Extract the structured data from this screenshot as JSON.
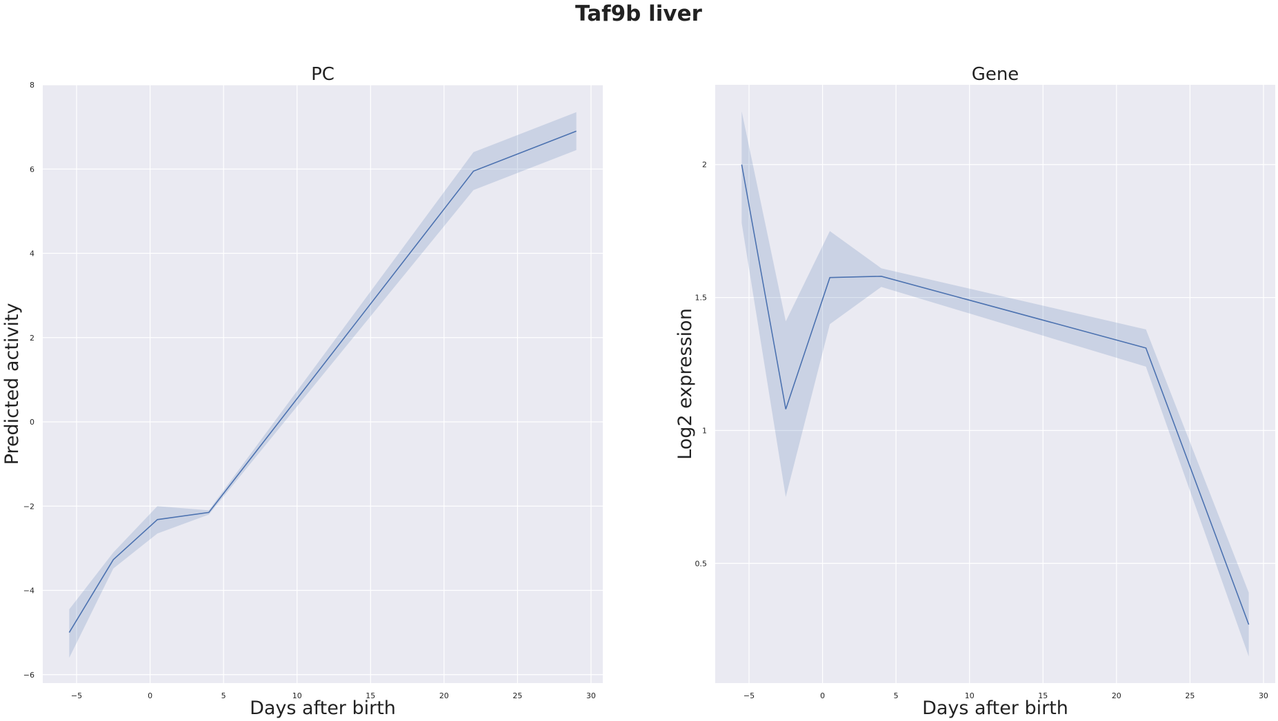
{
  "chart_data": {
    "suptitle": "Taf9b liver",
    "panels": [
      {
        "type": "line",
        "title": "PC",
        "xlabel": "Days after birth",
        "ylabel": "Predicted activity",
        "xlim": [
          -7.3,
          30.8
        ],
        "ylim": [
          -6.2,
          8.0
        ],
        "xticks": [
          -5,
          0,
          5,
          10,
          15,
          20,
          25,
          30
        ],
        "yticks": [
          -6,
          -4,
          -2,
          0,
          2,
          4,
          6,
          8
        ],
        "grid": true,
        "line_color": "#4c72b0",
        "band_color": "#4c72b0",
        "x": [
          -5.5,
          -2.5,
          0.5,
          4,
          22,
          29
        ],
        "y": [
          -5.0,
          -3.27,
          -2.32,
          -2.15,
          5.95,
          6.9
        ],
        "ci_low": [
          -5.6,
          -3.48,
          -2.65,
          -2.2,
          5.5,
          6.45
        ],
        "ci_high": [
          -4.45,
          -3.1,
          -2.0,
          -2.1,
          6.4,
          7.35
        ]
      },
      {
        "type": "line",
        "title": "Gene",
        "xlabel": "Days after birth",
        "ylabel": "Log2 expression",
        "xlim": [
          -7.3,
          30.8
        ],
        "ylim": [
          0.05,
          2.3
        ],
        "xticks": [
          -5,
          0,
          5,
          10,
          15,
          20,
          25,
          30
        ],
        "yticks": [
          0.5,
          1.0,
          1.5,
          2.0
        ],
        "grid": true,
        "line_color": "#4c72b0",
        "band_color": "#4c72b0",
        "x": [
          -5.5,
          -2.5,
          0.5,
          4,
          22,
          29
        ],
        "y": [
          2.0,
          1.08,
          1.575,
          1.58,
          1.31,
          0.27
        ],
        "ci_low": [
          1.78,
          0.75,
          1.4,
          1.54,
          1.24,
          0.15
        ],
        "ci_high": [
          2.2,
          1.41,
          1.75,
          1.61,
          1.38,
          0.39
        ]
      }
    ]
  }
}
